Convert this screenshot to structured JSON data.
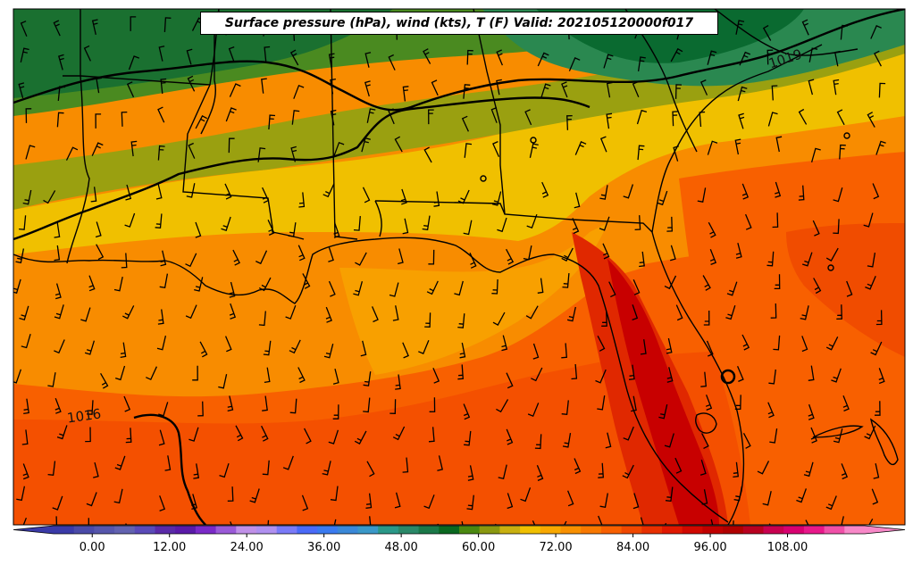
{
  "title": "Surface pressure (hPa), wind (kts), T (F) Valid: 202105120000f017",
  "colorbar": {
    "min": -6,
    "max": 120,
    "tick_labels": [
      "0.00",
      "12.00",
      "24.00",
      "36.00",
      "48.00",
      "60.00",
      "72.00",
      "84.00",
      "96.00",
      "108.00"
    ],
    "tick_values": [
      0,
      12,
      24,
      36,
      48,
      60,
      72,
      84,
      96,
      108
    ],
    "colors": [
      "#3a3aa8",
      "#4a4aa8",
      "#5656ac",
      "#6262b0",
      "#5a4ab8",
      "#5a2aa8",
      "#5a1aa8",
      "#7a2ac8",
      "#9a5ad8",
      "#c090e8",
      "#b090f0",
      "#7a7af8",
      "#4a6af8",
      "#3a7af0",
      "#3a88d8",
      "#3a98c8",
      "#2a9888",
      "#2a8868",
      "#1a7848",
      "#0a6820",
      "#4a8810",
      "#8a9810",
      "#c8b010",
      "#f0c000",
      "#f8a800",
      "#f89000",
      "#f87800",
      "#f86000",
      "#f04800",
      "#e83000",
      "#e01800",
      "#d00800",
      "#c00000",
      "#b00000",
      "#b80020",
      "#c80050",
      "#d80070",
      "#e8188a",
      "#f050a8",
      "#f888c8"
    ]
  },
  "isobars": [
    {
      "label": "1019"
    },
    {
      "label": "1016"
    }
  ],
  "legend_colors": {
    "cold_green": "#1a6a2a",
    "mid_green": "#4a8a20",
    "olive": "#9aa010",
    "yellow": "#f0c000",
    "orange": "#f88c00",
    "dark_orange": "#f86000",
    "red_orange": "#f04800",
    "red": "#d81800",
    "dark_red": "#c00000"
  }
}
